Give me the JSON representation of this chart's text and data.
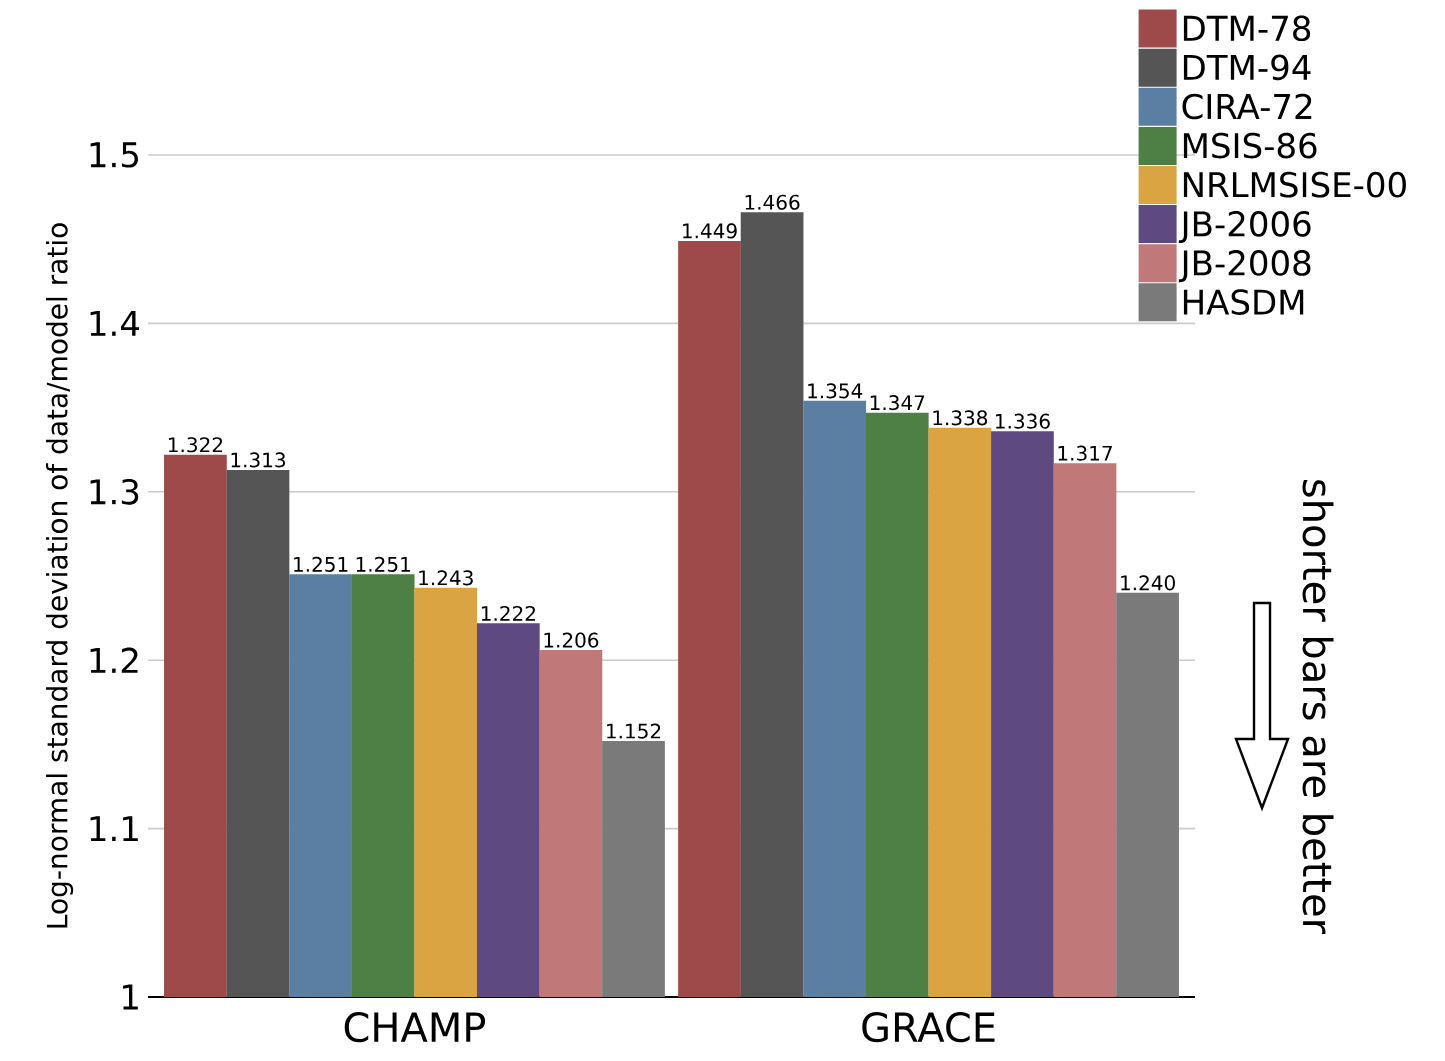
{
  "chart_data": {
    "type": "bar",
    "ylabel": "Log-normal standard deviation of data/model ratio",
    "categories": [
      "CHAMP",
      "GRACE"
    ],
    "series": [
      {
        "name": "DTM-78",
        "color": "#9e4a4a",
        "values": [
          1.322,
          1.449
        ],
        "value_labels": [
          "1.322",
          "1.449"
        ]
      },
      {
        "name": "DTM-94",
        "color": "#555555",
        "values": [
          1.313,
          1.466
        ],
        "value_labels": [
          "1.313",
          "1.466"
        ]
      },
      {
        "name": "CIRA-72",
        "color": "#5b7fa3",
        "values": [
          1.251,
          1.354
        ],
        "value_labels": [
          "1.251",
          "1.354"
        ]
      },
      {
        "name": "MSIS-86",
        "color": "#4e7f45",
        "values": [
          1.251,
          1.347
        ],
        "value_labels": [
          "1.251",
          "1.347"
        ]
      },
      {
        "name": "NRLMSISE-00",
        "color": "#d9a441",
        "values": [
          1.243,
          1.338
        ],
        "value_labels": [
          "1.243",
          "1.338"
        ]
      },
      {
        "name": "JB-2006",
        "color": "#5e4a80",
        "values": [
          1.222,
          1.336
        ],
        "value_labels": [
          "1.222",
          "1.336"
        ]
      },
      {
        "name": "JB-2008",
        "color": "#c07878",
        "values": [
          1.206,
          1.317
        ],
        "value_labels": [
          "1.206",
          "1.317"
        ]
      },
      {
        "name": "HASDM",
        "color": "#7a7a7a",
        "values": [
          1.152,
          1.24
        ],
        "value_labels": [
          "1.152",
          "1.240"
        ]
      }
    ],
    "ylim": [
      1,
      1.5
    ],
    "yticks": [
      1,
      1.1,
      1.2,
      1.3,
      1.4,
      1.5
    ],
    "grid": "y",
    "legend": "top right",
    "annotations": [
      "shorter bars are better"
    ]
  }
}
